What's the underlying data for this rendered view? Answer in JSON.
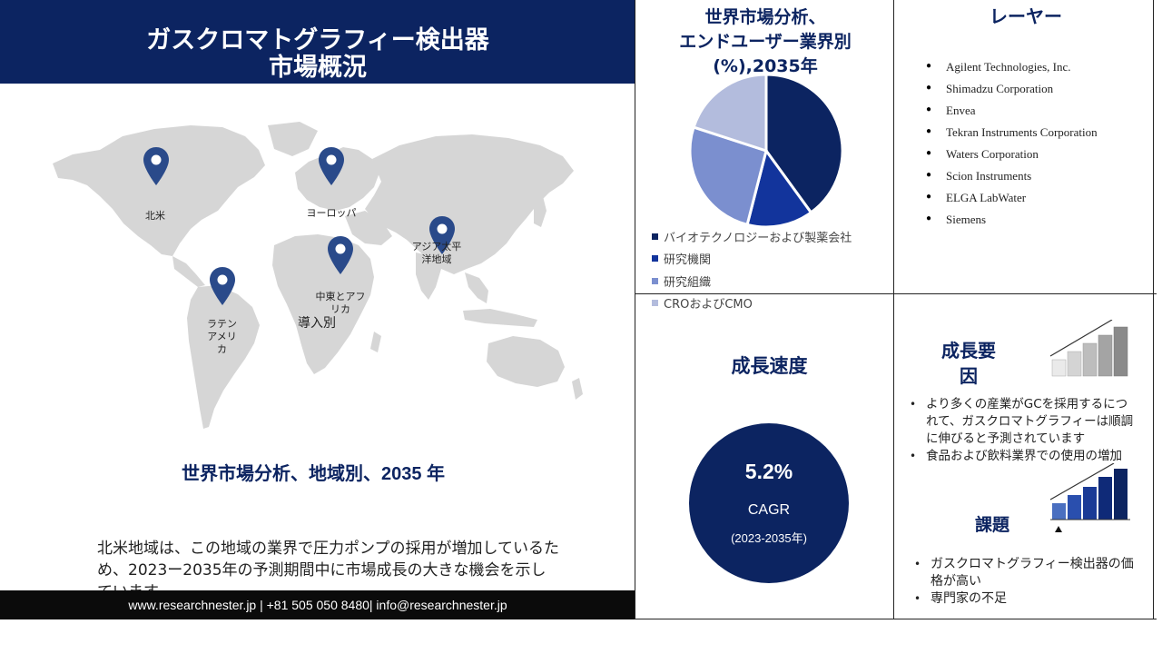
{
  "title": {
    "line1": "ガスクロマトグラフィー検出器",
    "line2": "市場概況"
  },
  "map": {
    "regions": [
      {
        "label_lines": [
          "北米"
        ]
      },
      {
        "label_lines": [
          "ヨーロッパ"
        ]
      },
      {
        "label_lines": [
          "アジア太平",
          "洋地域"
        ]
      },
      {
        "label_lines": [
          "中東とアフ",
          "リカ"
        ]
      },
      {
        "label_lines": [
          "ラテン",
          "アメリ",
          "カ"
        ]
      }
    ],
    "intro_label": "導入別",
    "region_title": "世界市場分析、地域別、2035 年",
    "description": "北米地域は、この地域の業界で圧力ポンプの採用が増加しているため、2023ー2035年の予測期間中に市場成長の大きな機会を示しています。"
  },
  "footer": {
    "text": "www.researchnester.jp | +81 505 050 8480| info@researchnester.jp"
  },
  "pie": {
    "title_lines": [
      "世界市場分析、",
      "エンドユーザー業界別",
      "(%),2035年"
    ]
  },
  "chart_data": {
    "type": "pie",
    "title": "世界市場分析、エンドユーザー業界別(%),2035年",
    "categories": [
      "バイオテクノロジーおよび製薬会社",
      "研究機関",
      "研究組織",
      "CROおよびCMO"
    ],
    "values": [
      40,
      14,
      26,
      20
    ],
    "colors": [
      "#0c2461",
      "#12349c",
      "#7b8fcf",
      "#b3bcdd"
    ],
    "legend_position": "bottom-left"
  },
  "players": {
    "title": "レーヤー",
    "items": [
      "Agilent Technologies, Inc.",
      "Shimadzu Corporation",
      "Envea",
      "Tekran Instruments Corporation",
      "Waters Corporation",
      "Scion Instruments",
      "ELGA LabWater",
      "Siemens"
    ]
  },
  "growth": {
    "title": "成長速度",
    "value": "5.2%",
    "label": "CAGR",
    "period": "(2023-2035年)"
  },
  "drivers": {
    "title_lines": [
      "成長要",
      "因"
    ],
    "items": [
      "より多くの産業がGCを採用するにつれて、ガスクロマトグラフィーは順調に伸びると予測されています",
      "食品および飲料業界での使用の増加"
    ]
  },
  "challenges": {
    "title": "課題",
    "items": [
      "ガスクロマトグラフィー検出器の価格が高い",
      "専門家の不足"
    ]
  },
  "colors": {
    "navy": "#0c2461",
    "pin": "#2a4a8a",
    "map_land": "#d6d6d6",
    "footer": "#0b0b0b"
  }
}
